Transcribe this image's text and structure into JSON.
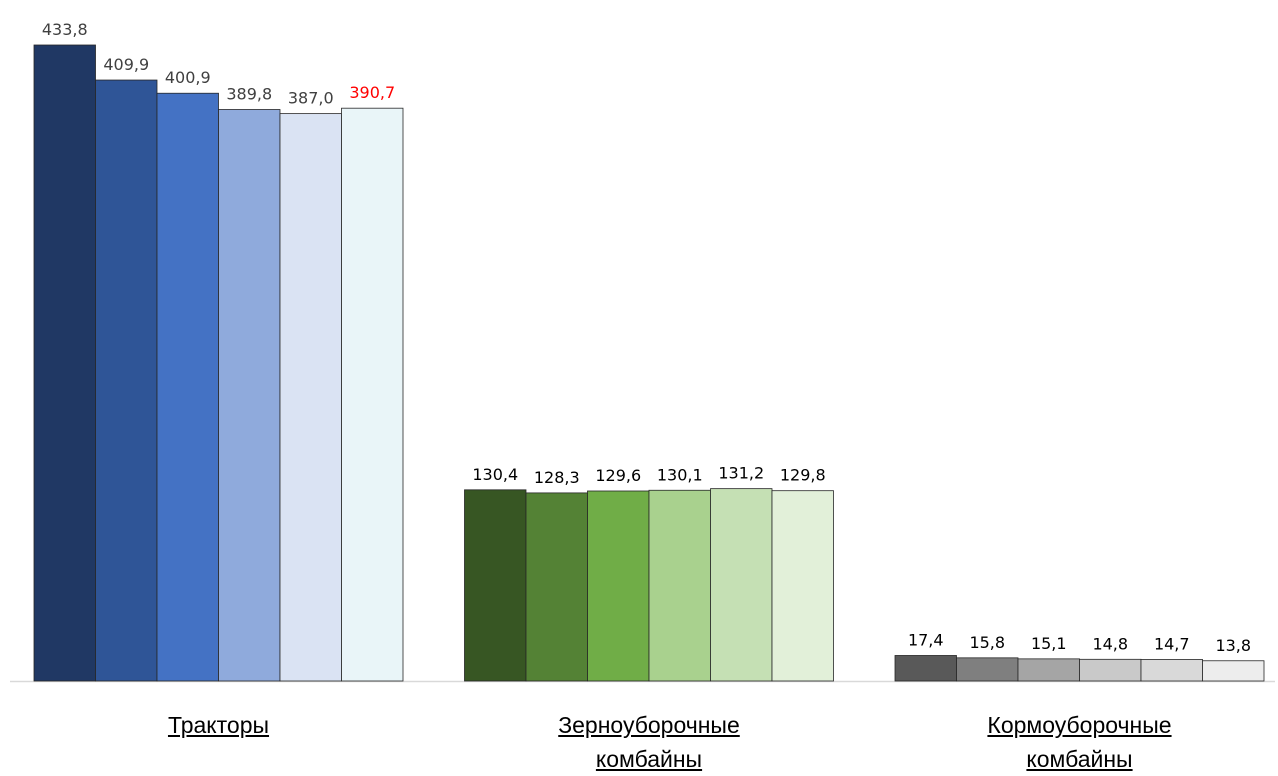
{
  "chart_data": {
    "type": "bar",
    "categories": [
      "Тракторы",
      "Зерноуборочные комбайны",
      "Кормоуборочные комбайны"
    ],
    "series": [
      {
        "values": [
          433.8,
          130.4,
          17.4
        ],
        "value_labels": [
          "433,8",
          "130,4",
          "17,4"
        ],
        "colors": [
          "#203864",
          "#375623",
          "#595959"
        ],
        "label_colors": [
          "#404040",
          "#000000",
          "#000000"
        ]
      },
      {
        "values": [
          409.9,
          128.3,
          15.8
        ],
        "value_labels": [
          "409,9",
          "128,3",
          "15,8"
        ],
        "colors": [
          "#2f5597",
          "#548235",
          "#7f7f7f"
        ],
        "label_colors": [
          "#404040",
          "#000000",
          "#000000"
        ]
      },
      {
        "values": [
          400.9,
          129.6,
          15.1
        ],
        "value_labels": [
          "400,9",
          "129,6",
          "15,1"
        ],
        "colors": [
          "#4472c4",
          "#70ad47",
          "#a5a5a5"
        ],
        "label_colors": [
          "#404040",
          "#000000",
          "#000000"
        ]
      },
      {
        "values": [
          389.8,
          130.1,
          14.8
        ],
        "value_labels": [
          "389,8",
          "130,1",
          "14,8"
        ],
        "colors": [
          "#8faadc",
          "#a9d18e",
          "#c9c9c9"
        ],
        "label_colors": [
          "#404040",
          "#000000",
          "#000000"
        ]
      },
      {
        "values": [
          387.0,
          131.2,
          14.7
        ],
        "value_labels": [
          "387,0",
          "131,2",
          "14,7"
        ],
        "colors": [
          "#dae3f3",
          "#c5e0b4",
          "#d9d9d9"
        ],
        "label_colors": [
          "#404040",
          "#000000",
          "#000000"
        ]
      },
      {
        "values": [
          390.7,
          129.8,
          13.8
        ],
        "value_labels": [
          "390,7",
          "129,8",
          "13,8"
        ],
        "colors": [
          "#e9f5f8",
          "#e2f0d9",
          "#ededed"
        ],
        "label_colors": [
          "#ff0000",
          "#000000",
          "#000000"
        ]
      }
    ]
  }
}
